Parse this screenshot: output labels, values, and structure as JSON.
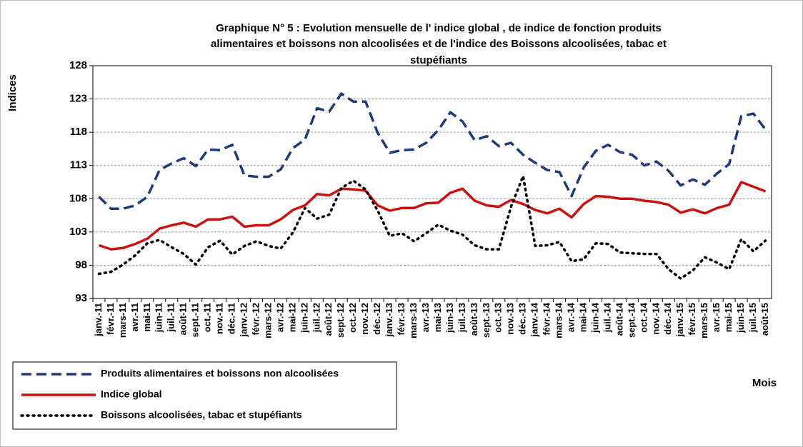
{
  "chart_data": {
    "type": "line",
    "title": [
      "Graphique N° 5 : Evolution mensuelle de l' indice global , de indice de fonction produits",
      "alimentaires et boissons non alcoolisées et  de l'indice des Boissons alcoolisées, tabac et",
      "stupéfiants"
    ],
    "y_label": "Indices",
    "x_label": "Mois",
    "categories": [
      "janv.-11",
      "févr.-11",
      "mars-11",
      "avr.-11",
      "mai-11",
      "juin-11",
      "juil.-11",
      "août-11",
      "sept.-11",
      "oct.-11",
      "nov.-11",
      "déc.-11",
      "janv.-12",
      "févr.-12",
      "mars-12",
      "avr.-12",
      "mai-12",
      "juin-12",
      "juil.-12",
      "août-12",
      "sept.-12",
      "oct.-12",
      "nov.-12",
      "déc.-12",
      "janv.-13",
      "févr.-13",
      "mars-13",
      "avr.-13",
      "mai-13",
      "juin-13",
      "juil.-13",
      "août-13",
      "sept.-13",
      "oct.-13",
      "nov.-13",
      "déc.-13",
      "janv.-14",
      "févr.-14",
      "mars-14",
      "avr.-14",
      "mai-14",
      "juin-14",
      "juil.-14",
      "août-14",
      "sept.-14",
      "oct.-14",
      "nov.-14",
      "déc.-14",
      "janv.-15",
      "févr.-15",
      "mars-15",
      "avr.-15",
      "mai-15",
      "juin-15",
      "juil.-15",
      "août-15"
    ],
    "series": [
      {
        "name": "Produits alimentaires et boissons non alcoolisées",
        "color": "#1f3a7a",
        "dash": "dashed",
        "values": [
          108.3,
          106.5,
          106.5,
          107,
          108.3,
          112.3,
          113.3,
          114.1,
          112.9,
          115.4,
          115.3,
          116.1,
          111.5,
          111.3,
          111.3,
          112.4,
          115.6,
          116.9,
          121.6,
          121.1,
          123.8,
          122.6,
          122.6,
          117.9,
          114.9,
          115.3,
          115.4,
          116.4,
          118.3,
          121.0,
          119.6,
          116.8,
          117.4,
          115.9,
          116.4,
          114.6,
          113.4,
          112.3,
          112.0,
          108.4,
          112.7,
          115.2,
          116.1,
          115.0,
          114.6,
          113.0,
          113.6,
          112.2,
          110.0,
          110.9,
          110.1,
          111.8,
          113.2,
          120.4,
          120.8,
          118.4
        ]
      },
      {
        "name": "Indice global",
        "color": "#cc1111",
        "dash": "solid",
        "values": [
          101.0,
          100.4,
          100.6,
          101.2,
          102.0,
          103.5,
          104.0,
          104.4,
          103.8,
          104.9,
          104.9,
          105.3,
          103.8,
          104.0,
          104.0,
          104.9,
          106.3,
          107.0,
          108.7,
          108.5,
          109.5,
          109.4,
          109.2,
          107.0,
          106.2,
          106.6,
          106.6,
          107.3,
          107.4,
          108.9,
          109.5,
          107.7,
          107.0,
          106.8,
          107.8,
          107.2,
          106.3,
          105.8,
          106.5,
          105.2,
          107.2,
          108.4,
          108.3,
          108.0,
          108.0,
          107.7,
          107.5,
          107.1,
          105.9,
          106.4,
          105.8,
          106.6,
          107.1,
          110.5,
          109.8,
          109.1
        ]
      },
      {
        "name": "Boissons alcoolisées, tabac et stupéfiants",
        "color": "#000000",
        "dash": "dotted",
        "values": [
          96.7,
          97.0,
          98.1,
          99.5,
          101.3,
          101.8,
          100.7,
          99.7,
          98.1,
          100.7,
          101.7,
          99.6,
          100.9,
          101.6,
          100.9,
          100.5,
          102.9,
          106.6,
          105.0,
          105.6,
          109.6,
          110.7,
          109.4,
          106.2,
          102.4,
          102.8,
          101.6,
          102.8,
          104.1,
          103.2,
          102.6,
          101.0,
          100.4,
          100.4,
          106.8,
          111.4,
          100.9,
          101.0,
          101.5,
          98.6,
          98.9,
          101.3,
          101.2,
          99.9,
          99.8,
          99.7,
          99.7,
          97.4,
          96.0,
          97.2,
          99.2,
          98.4,
          97.4,
          101.9,
          100.1,
          101.7
        ]
      }
    ],
    "ylim": [
      93,
      128
    ],
    "yticks": [
      93,
      98,
      103,
      108,
      113,
      118,
      123,
      128
    ],
    "grid": true,
    "legend": "bottom-left"
  }
}
